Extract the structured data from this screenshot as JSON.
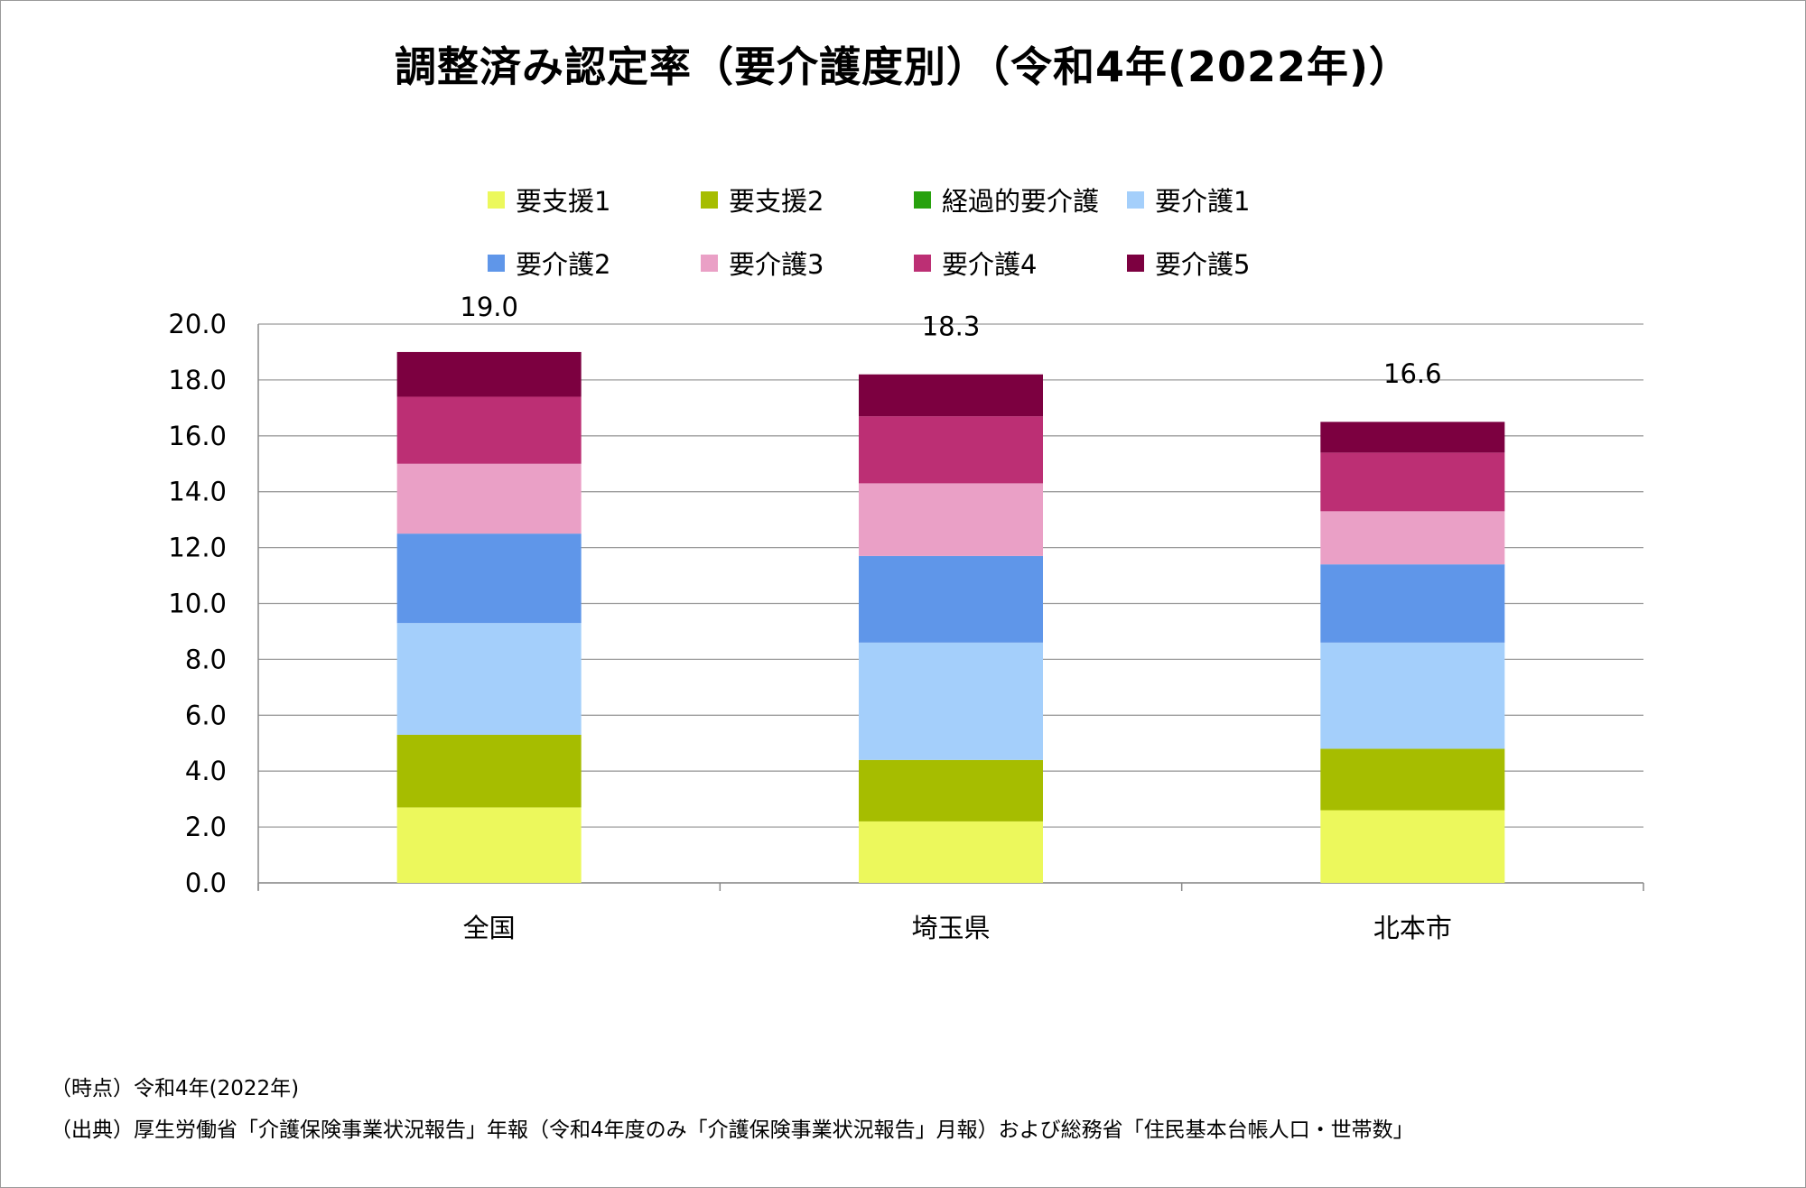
{
  "title": "調整済み認定率（要介護度別）（令和4年(2022年)）",
  "chart_data": {
    "type": "bar",
    "stacked": true,
    "categories": [
      "全国",
      "埼玉県",
      "北本市"
    ],
    "series": [
      {
        "name": "要支援1",
        "color": "#ecf85c",
        "values": [
          2.7,
          2.2,
          2.6
        ]
      },
      {
        "name": "要支援2",
        "color": "#a6bd00",
        "values": [
          2.6,
          2.2,
          2.2
        ]
      },
      {
        "name": "経過的要介護",
        "color": "#28a10e",
        "values": [
          0.0,
          0.0,
          0.0
        ]
      },
      {
        "name": "要介護1",
        "color": "#a4cffb",
        "values": [
          4.0,
          4.2,
          3.8
        ]
      },
      {
        "name": "要介護2",
        "color": "#5f96e9",
        "values": [
          3.2,
          3.1,
          2.8
        ]
      },
      {
        "name": "要介護3",
        "color": "#eaa0c6",
        "values": [
          2.5,
          2.6,
          1.9
        ]
      },
      {
        "name": "要介護4",
        "color": "#bc2f74",
        "values": [
          2.4,
          2.4,
          2.1
        ]
      },
      {
        "name": "要介護5",
        "color": "#7c0040",
        "values": [
          1.6,
          1.5,
          1.1
        ]
      }
    ],
    "totals": [
      19.0,
      18.3,
      16.6
    ],
    "total_labels": [
      "19.0",
      "18.3",
      "16.6"
    ],
    "ylim": [
      0,
      20
    ],
    "yticks": [
      "0.0",
      "2.0",
      "4.0",
      "6.0",
      "8.0",
      "10.0",
      "12.0",
      "14.0",
      "16.0",
      "18.0",
      "20.0"
    ],
    "grid": true,
    "legend_position": "top"
  },
  "notes": {
    "time_point": "（時点）令和4年(2022年)",
    "source": "（出典）厚生労働省「介護保険事業状況報告」年報（令和4年度のみ「介護保険事業状況報告」月報）および総務省「住民基本台帳人口・世帯数」"
  }
}
